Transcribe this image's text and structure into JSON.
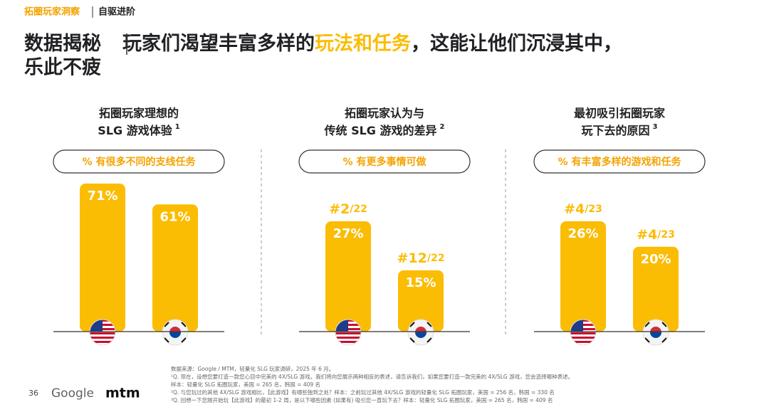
{
  "header": {
    "section": "拓圈玩家洞察",
    "subsection": "自驱进阶"
  },
  "title": {
    "lead": "数据揭秘",
    "part1": "玩家们渴望丰富多样的",
    "highlight": "玩法和任务",
    "part2": "，这能让他们沉浸其中，",
    "line2": "乐此不疲"
  },
  "chart_data": [
    {
      "type": "bar",
      "title": [
        "拓圈玩家理想的",
        "SLG 游戏体验"
      ],
      "footnote_ref": "1",
      "subtitle": "% 有很多不同的支线任务",
      "categories": [
        null,
        null
      ],
      "values": [
        71,
        61
      ],
      "value_labels": [
        "71%",
        "61%"
      ],
      "color": "#fbbc04"
    },
    {
      "type": "bar",
      "title": [
        "拓圈玩家认为与",
        "传统 SLG 游戏的差异"
      ],
      "footnote_ref": "2",
      "subtitle": "% 有更多事情可做",
      "categories": [
        null,
        null
      ],
      "values": [
        27,
        15
      ],
      "value_labels": [
        "27%",
        "15%"
      ],
      "rank_labels": [
        {
          "rank": "#2",
          "of": "/22"
        },
        {
          "rank": "#12",
          "of": "/22"
        }
      ],
      "color": "#fbbc04"
    },
    {
      "type": "bar",
      "title": [
        "最初吸引拓圈玩家",
        "玩下去的原因"
      ],
      "footnote_ref": "3",
      "subtitle": "% 有丰富多样的游戏和任务",
      "categories": [
        null,
        null
      ],
      "values": [
        26,
        20
      ],
      "value_labels": [
        "26%",
        "20%"
      ],
      "rank_labels": [
        {
          "rank": "#4",
          "of": "/23"
        },
        {
          "rank": "#4",
          "of": "/23"
        }
      ],
      "color": "#fbbc04"
    }
  ],
  "footer": {
    "page": "36",
    "logo1": "Google",
    "logo2": "mtm",
    "notes": [
      "数据来源：Google / MTM，轻量化 SLG 玩家调研，2025 年 6 月。",
      "¹Q. 现在，设想您要打造一款您心目中完美的 4X/SLG 游戏。我们将向您展示两种相反的表述，请告诉我们，如果您要打造一款完美的 4X/SLG 游戏，您会选择哪种表述。",
      "样本：轻量化 SLG 拓圈玩家，美国 = 265 名，韩国 = 409 名",
      "²Q. 与您玩过的其他 4X/SLG 游戏相比，【此游戏】有哪些独到之处？样本：之前玩过其他 4X/SLG 游戏的轻量化 SLG 拓圈玩家，美国 = 256 名，韩国 = 330 名",
      "³Q. 回想一下您刚开始玩【此游戏】的最初 1-2 周，是以下哪些因素 (如果有) 吸引您一直玩下去？样本：轻量化 SLG 拓圈玩家，美国 = 265 名，韩国 = 409 名"
    ]
  }
}
